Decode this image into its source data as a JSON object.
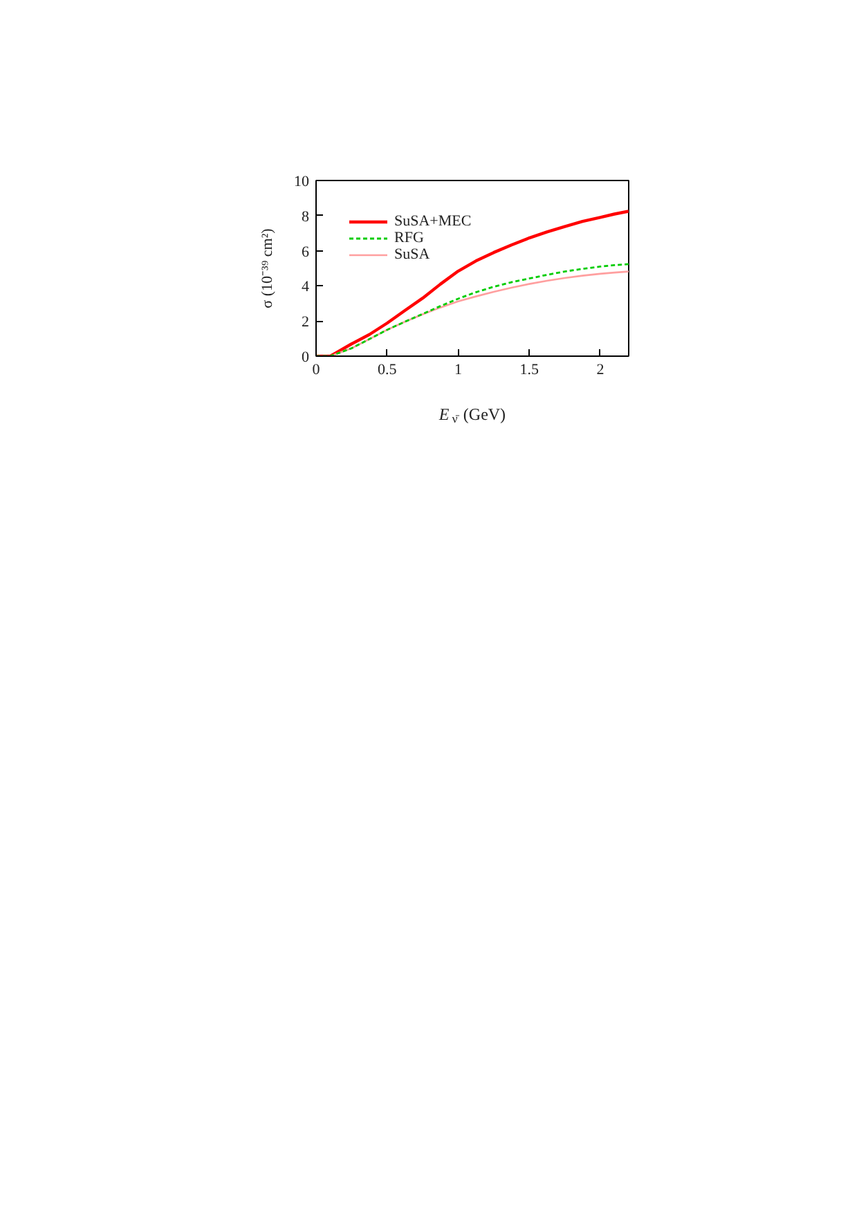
{
  "chart_data": {
    "type": "line",
    "xlabel": "E$_{ν̄}$ (GeV)",
    "ylabel": "σ (10⁻³⁹ cm²)",
    "x": [
      0,
      0.1,
      0.25,
      0.375,
      0.5,
      0.625,
      0.75,
      0.875,
      1.0,
      1.125,
      1.25,
      1.375,
      1.5,
      1.625,
      1.75,
      1.875,
      2.0,
      2.1,
      2.2
    ],
    "series": [
      {
        "name": "SuSA+MEC",
        "color": "#ff0000",
        "line_style": "solid",
        "values": [
          0,
          0,
          0.7,
          1.23,
          1.88,
          2.6,
          3.3,
          4.1,
          4.84,
          5.42,
          5.9,
          6.33,
          6.73,
          7.07,
          7.38,
          7.67,
          7.9,
          8.09,
          8.25
        ]
      },
      {
        "name": "RFG",
        "color": "#00cc00",
        "line_style": "dashed",
        "values": [
          0,
          0,
          0.45,
          0.97,
          1.5,
          1.96,
          2.4,
          2.85,
          3.27,
          3.64,
          3.95,
          4.21,
          4.42,
          4.63,
          4.82,
          4.97,
          5.1,
          5.18,
          5.24
        ]
      },
      {
        "name": "SuSA",
        "color": "#ff9f9f",
        "line_style": "solid",
        "values": [
          0,
          0,
          0.45,
          0.97,
          1.5,
          1.96,
          2.38,
          2.77,
          3.12,
          3.4,
          3.66,
          3.9,
          4.11,
          4.29,
          4.45,
          4.58,
          4.69,
          4.76,
          4.82
        ]
      }
    ],
    "xlim": [
      0,
      2.2
    ],
    "ylim": [
      0,
      10
    ],
    "xticks": [
      0,
      0.5,
      1,
      1.5,
      2
    ],
    "yticks": [
      0,
      2,
      4,
      6,
      8,
      10
    ],
    "grid": false,
    "legend": "top left",
    "marker": "none"
  }
}
